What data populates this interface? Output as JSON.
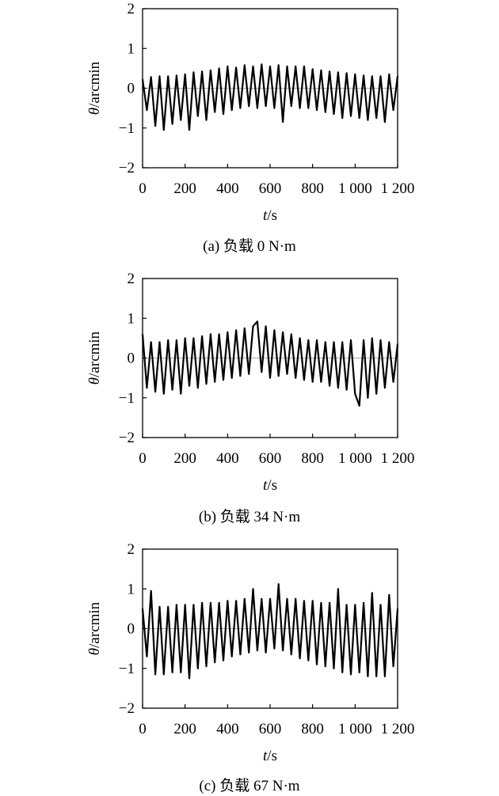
{
  "chart_data": [
    {
      "type": "line",
      "caption": "(a) 负载 0 N·m",
      "xlabel_var": "t",
      "xlabel_unit": "/s",
      "ylabel_var": "θ",
      "ylabel_unit": "/arcmin",
      "xlim": [
        0,
        1200
      ],
      "ylim": [
        -2,
        2
      ],
      "xticks": [
        0,
        200,
        400,
        600,
        800,
        1000,
        1200
      ],
      "xtick_labels": [
        "0",
        "200",
        "400",
        "600",
        "800",
        "1 000",
        "1 200"
      ],
      "yticks": [
        2,
        1,
        0,
        -1,
        -2
      ],
      "ytick_labels": [
        "2",
        "1",
        "0",
        "−1",
        "−2"
      ],
      "grid": false,
      "series": [
        {
          "values": [
            {
              "x": 0,
              "y": 0.22
            },
            {
              "x": 20,
              "y": -0.55
            },
            {
              "x": 40,
              "y": 0.28
            },
            {
              "x": 60,
              "y": -0.95
            },
            {
              "x": 80,
              "y": 0.3
            },
            {
              "x": 100,
              "y": -1.05
            },
            {
              "x": 120,
              "y": 0.3
            },
            {
              "x": 140,
              "y": -0.9
            },
            {
              "x": 160,
              "y": 0.32
            },
            {
              "x": 180,
              "y": -0.8
            },
            {
              "x": 200,
              "y": 0.35
            },
            {
              "x": 220,
              "y": -1.05
            },
            {
              "x": 240,
              "y": 0.4
            },
            {
              "x": 260,
              "y": -0.7
            },
            {
              "x": 280,
              "y": 0.42
            },
            {
              "x": 300,
              "y": -0.8
            },
            {
              "x": 320,
              "y": 0.45
            },
            {
              "x": 340,
              "y": -0.6
            },
            {
              "x": 360,
              "y": 0.5
            },
            {
              "x": 380,
              "y": -0.65
            },
            {
              "x": 400,
              "y": 0.55
            },
            {
              "x": 420,
              "y": -0.55
            },
            {
              "x": 440,
              "y": 0.52
            },
            {
              "x": 460,
              "y": -0.5
            },
            {
              "x": 480,
              "y": 0.58
            },
            {
              "x": 500,
              "y": -0.45
            },
            {
              "x": 520,
              "y": 0.55
            },
            {
              "x": 540,
              "y": -0.5
            },
            {
              "x": 560,
              "y": 0.6
            },
            {
              "x": 580,
              "y": -0.45
            },
            {
              "x": 600,
              "y": 0.55
            },
            {
              "x": 620,
              "y": -0.5
            },
            {
              "x": 640,
              "y": 0.58
            },
            {
              "x": 660,
              "y": -0.85
            },
            {
              "x": 680,
              "y": 0.55
            },
            {
              "x": 700,
              "y": -0.45
            },
            {
              "x": 720,
              "y": 0.55
            },
            {
              "x": 740,
              "y": -0.5
            },
            {
              "x": 760,
              "y": 0.55
            },
            {
              "x": 780,
              "y": -0.5
            },
            {
              "x": 800,
              "y": 0.48
            },
            {
              "x": 820,
              "y": -0.55
            },
            {
              "x": 840,
              "y": 0.45
            },
            {
              "x": 860,
              "y": -0.6
            },
            {
              "x": 880,
              "y": 0.42
            },
            {
              "x": 900,
              "y": -0.65
            },
            {
              "x": 920,
              "y": 0.4
            },
            {
              "x": 940,
              "y": -0.75
            },
            {
              "x": 960,
              "y": 0.38
            },
            {
              "x": 980,
              "y": -0.7
            },
            {
              "x": 1000,
              "y": 0.35
            },
            {
              "x": 1020,
              "y": -0.75
            },
            {
              "x": 1040,
              "y": 0.32
            },
            {
              "x": 1060,
              "y": -0.8
            },
            {
              "x": 1080,
              "y": 0.3
            },
            {
              "x": 1100,
              "y": -0.75
            },
            {
              "x": 1120,
              "y": 0.3
            },
            {
              "x": 1140,
              "y": -0.85
            },
            {
              "x": 1160,
              "y": 0.35
            },
            {
              "x": 1180,
              "y": -0.55
            },
            {
              "x": 1200,
              "y": 0.3
            }
          ]
        }
      ]
    },
    {
      "type": "line",
      "caption": "(b) 负载 34 N·m",
      "xlabel_var": "t",
      "xlabel_unit": "/s",
      "ylabel_var": "θ",
      "ylabel_unit": "/arcmin",
      "xlim": [
        0,
        1200
      ],
      "ylim": [
        -2,
        2
      ],
      "xticks": [
        0,
        200,
        400,
        600,
        800,
        1000,
        1200
      ],
      "xtick_labels": [
        "0",
        "200",
        "400",
        "600",
        "800",
        "1 000",
        "1 200"
      ],
      "yticks": [
        2,
        1,
        0,
        -1,
        -2
      ],
      "ytick_labels": [
        "2",
        "1",
        "0",
        "−1",
        "−2"
      ],
      "grid": false,
      "series": [
        {
          "values": [
            {
              "x": 0,
              "y": 0.6
            },
            {
              "x": 20,
              "y": -0.75
            },
            {
              "x": 40,
              "y": 0.4
            },
            {
              "x": 60,
              "y": -0.85
            },
            {
              "x": 80,
              "y": 0.4
            },
            {
              "x": 100,
              "y": -0.9
            },
            {
              "x": 120,
              "y": 0.45
            },
            {
              "x": 140,
              "y": -0.8
            },
            {
              "x": 160,
              "y": 0.45
            },
            {
              "x": 180,
              "y": -0.9
            },
            {
              "x": 200,
              "y": 0.5
            },
            {
              "x": 220,
              "y": -0.7
            },
            {
              "x": 240,
              "y": 0.5
            },
            {
              "x": 260,
              "y": -0.75
            },
            {
              "x": 280,
              "y": 0.55
            },
            {
              "x": 300,
              "y": -0.65
            },
            {
              "x": 320,
              "y": 0.6
            },
            {
              "x": 340,
              "y": -0.6
            },
            {
              "x": 360,
              "y": 0.6
            },
            {
              "x": 380,
              "y": -0.55
            },
            {
              "x": 400,
              "y": 0.65
            },
            {
              "x": 420,
              "y": -0.5
            },
            {
              "x": 440,
              "y": 0.7
            },
            {
              "x": 460,
              "y": -0.45
            },
            {
              "x": 480,
              "y": 0.75
            },
            {
              "x": 500,
              "y": -0.4
            },
            {
              "x": 520,
              "y": 0.8
            },
            {
              "x": 540,
              "y": 0.92
            },
            {
              "x": 560,
              "y": -0.35
            },
            {
              "x": 580,
              "y": 0.8
            },
            {
              "x": 600,
              "y": -0.5
            },
            {
              "x": 620,
              "y": 0.7
            },
            {
              "x": 640,
              "y": -0.45
            },
            {
              "x": 660,
              "y": 0.65
            },
            {
              "x": 680,
              "y": -0.4
            },
            {
              "x": 700,
              "y": 0.6
            },
            {
              "x": 720,
              "y": -0.5
            },
            {
              "x": 740,
              "y": 0.5
            },
            {
              "x": 760,
              "y": -0.55
            },
            {
              "x": 780,
              "y": 0.45
            },
            {
              "x": 800,
              "y": -0.6
            },
            {
              "x": 820,
              "y": 0.45
            },
            {
              "x": 840,
              "y": -0.6
            },
            {
              "x": 860,
              "y": 0.4
            },
            {
              "x": 880,
              "y": -0.7
            },
            {
              "x": 900,
              "y": 0.4
            },
            {
              "x": 920,
              "y": -0.75
            },
            {
              "x": 940,
              "y": 0.4
            },
            {
              "x": 960,
              "y": -0.8
            },
            {
              "x": 980,
              "y": 0.45
            },
            {
              "x": 1000,
              "y": -0.9
            },
            {
              "x": 1020,
              "y": -1.2
            },
            {
              "x": 1040,
              "y": 0.45
            },
            {
              "x": 1060,
              "y": -1.0
            },
            {
              "x": 1080,
              "y": 0.5
            },
            {
              "x": 1100,
              "y": -0.9
            },
            {
              "x": 1120,
              "y": 0.45
            },
            {
              "x": 1140,
              "y": -0.75
            },
            {
              "x": 1160,
              "y": 0.4
            },
            {
              "x": 1180,
              "y": -0.6
            },
            {
              "x": 1200,
              "y": 0.35
            }
          ]
        }
      ]
    },
    {
      "type": "line",
      "caption": "(c) 负载 67 N·m",
      "xlabel_var": "t",
      "xlabel_unit": "/s",
      "ylabel_var": "θ",
      "ylabel_unit": "/arcmin",
      "xlim": [
        0,
        1200
      ],
      "ylim": [
        -2,
        2
      ],
      "xticks": [
        0,
        200,
        400,
        600,
        800,
        1000,
        1200
      ],
      "xtick_labels": [
        "0",
        "200",
        "400",
        "600",
        "800",
        "1 000",
        "1 200"
      ],
      "yticks": [
        2,
        1,
        0,
        -1,
        -2
      ],
      "ytick_labels": [
        "2",
        "1",
        "0",
        "−1",
        "−2"
      ],
      "grid": false,
      "series": [
        {
          "values": [
            {
              "x": 0,
              "y": 0.5
            },
            {
              "x": 20,
              "y": -0.7
            },
            {
              "x": 40,
              "y": 0.95
            },
            {
              "x": 60,
              "y": -1.15
            },
            {
              "x": 80,
              "y": 0.55
            },
            {
              "x": 100,
              "y": -1.15
            },
            {
              "x": 120,
              "y": 0.55
            },
            {
              "x": 140,
              "y": -1.1
            },
            {
              "x": 160,
              "y": 0.6
            },
            {
              "x": 180,
              "y": -1.1
            },
            {
              "x": 200,
              "y": 0.6
            },
            {
              "x": 220,
              "y": -1.25
            },
            {
              "x": 240,
              "y": 0.6
            },
            {
              "x": 260,
              "y": -1.0
            },
            {
              "x": 280,
              "y": 0.65
            },
            {
              "x": 300,
              "y": -0.95
            },
            {
              "x": 320,
              "y": 0.65
            },
            {
              "x": 340,
              "y": -0.85
            },
            {
              "x": 360,
              "y": 0.65
            },
            {
              "x": 380,
              "y": -0.8
            },
            {
              "x": 400,
              "y": 0.7
            },
            {
              "x": 420,
              "y": -0.7
            },
            {
              "x": 440,
              "y": 0.7
            },
            {
              "x": 460,
              "y": -0.65
            },
            {
              "x": 480,
              "y": 0.75
            },
            {
              "x": 500,
              "y": -0.6
            },
            {
              "x": 520,
              "y": 1.0
            },
            {
              "x": 540,
              "y": -0.55
            },
            {
              "x": 560,
              "y": 0.75
            },
            {
              "x": 580,
              "y": -0.6
            },
            {
              "x": 600,
              "y": 0.75
            },
            {
              "x": 620,
              "y": -0.5
            },
            {
              "x": 640,
              "y": 1.12
            },
            {
              "x": 660,
              "y": -0.55
            },
            {
              "x": 680,
              "y": 0.75
            },
            {
              "x": 700,
              "y": -0.65
            },
            {
              "x": 720,
              "y": 0.75
            },
            {
              "x": 740,
              "y": -0.75
            },
            {
              "x": 760,
              "y": 0.7
            },
            {
              "x": 780,
              "y": -0.8
            },
            {
              "x": 800,
              "y": 0.7
            },
            {
              "x": 820,
              "y": -0.9
            },
            {
              "x": 840,
              "y": 0.65
            },
            {
              "x": 860,
              "y": -0.95
            },
            {
              "x": 880,
              "y": 0.65
            },
            {
              "x": 900,
              "y": -1.0
            },
            {
              "x": 920,
              "y": 1.0
            },
            {
              "x": 940,
              "y": -1.1
            },
            {
              "x": 960,
              "y": 0.6
            },
            {
              "x": 980,
              "y": -1.15
            },
            {
              "x": 1000,
              "y": 0.6
            },
            {
              "x": 1020,
              "y": -1.1
            },
            {
              "x": 1040,
              "y": 0.65
            },
            {
              "x": 1060,
              "y": -1.2
            },
            {
              "x": 1080,
              "y": 0.9
            },
            {
              "x": 1100,
              "y": -1.2
            },
            {
              "x": 1120,
              "y": 0.6
            },
            {
              "x": 1140,
              "y": -1.2
            },
            {
              "x": 1160,
              "y": 0.85
            },
            {
              "x": 1180,
              "y": -0.95
            },
            {
              "x": 1200,
              "y": 0.5
            }
          ]
        }
      ]
    }
  ]
}
